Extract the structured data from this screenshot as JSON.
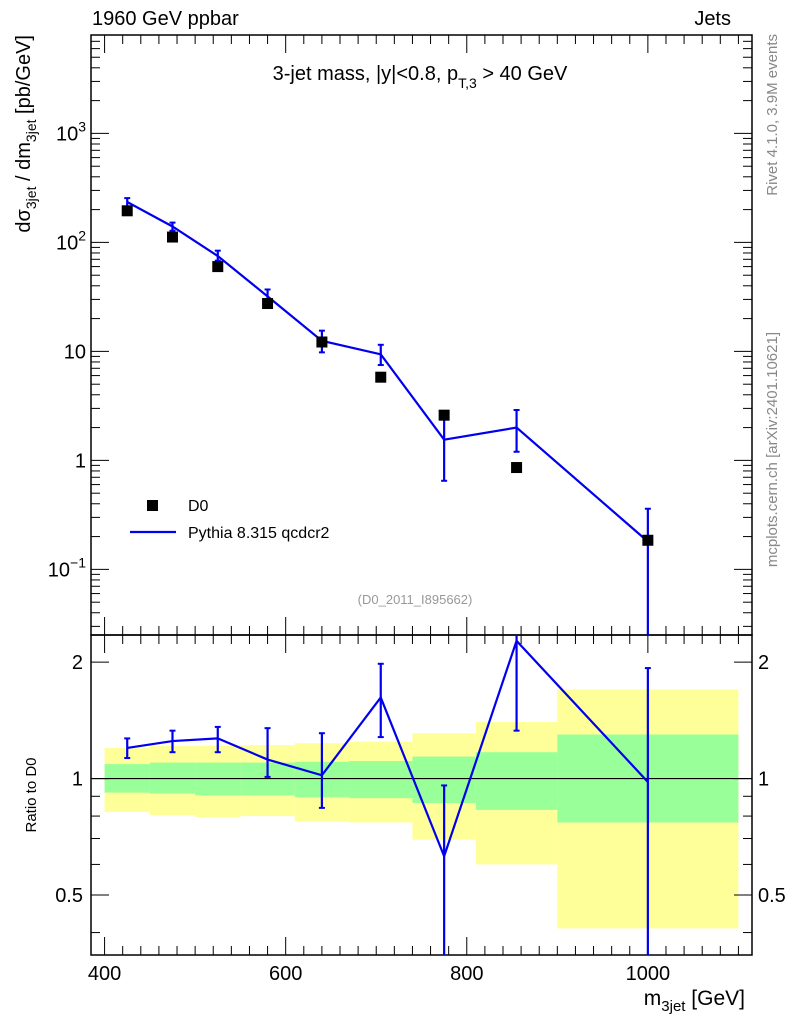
{
  "header": {
    "left": "1960 GeV ppbar",
    "right": "Jets"
  },
  "side_labels": {
    "rivet": "Rivet 4.1.0,  3.9M events",
    "mcplots": "mcplots.cern.ch [arXiv:2401.10621]"
  },
  "colors": {
    "mc": "#0000ee",
    "data": "#000000",
    "band_stat": "#99ff99",
    "band_total": "#ffff99"
  },
  "chart_data": [
    {
      "type": "scatter",
      "panel": "main",
      "title": "3-jet mass, |y|<0.8, p_{T,3} > 40 GeV",
      "title_parts": {
        "main": "3-jet mass, |y|<0.8, p",
        "sub": "T,3",
        "tail": " > 40 GeV"
      },
      "ylabel_parts": {
        "d": "d",
        "sigma": "σ",
        "sub1": "3jet",
        "mid": " / dm",
        "sub2": "3jet",
        "unit": " [pb/GeV]"
      },
      "yscale": "log",
      "ylim": [
        0.025,
        8000
      ],
      "xlim": [
        385,
        1115
      ],
      "yticks": [
        {
          "v": 1000,
          "b": "10",
          "e": "3"
        },
        {
          "v": 100,
          "b": "10",
          "e": "2"
        },
        {
          "v": 10,
          "b": "10",
          "e": ""
        },
        {
          "v": 1,
          "b": "1",
          "e": ""
        },
        {
          "v": 0.1,
          "b": "10",
          "e": "−1"
        }
      ],
      "watermark": "(D0_2011_I895662)",
      "legend": [
        {
          "label": "D0",
          "marker": "square"
        },
        {
          "label": "Pythia 8.315 qcdcr2",
          "marker": "line"
        }
      ],
      "series": [
        {
          "name": "D0",
          "x": [
            425,
            475,
            525,
            580,
            640,
            705,
            775,
            855,
            1000
          ],
          "y": [
            195,
            112,
            60,
            27.5,
            12.2,
            5.8,
            2.6,
            0.86,
            0.185
          ]
        },
        {
          "name": "Pythia 8.315 qcdcr2",
          "x": [
            425,
            475,
            525,
            580,
            640,
            705,
            775,
            855,
            1000
          ],
          "y": [
            235,
            140,
            75,
            32,
            12.5,
            9.4,
            1.55,
            2.0,
            0.18
          ],
          "err_lo": [
            205,
            128,
            68,
            28,
            9.8,
            7.5,
            0.65,
            1.2,
            0.02
          ],
          "err_hi": [
            255,
            152,
            84,
            37,
            15.5,
            11.5,
            2.5,
            2.9,
            0.36
          ]
        }
      ]
    },
    {
      "type": "line",
      "panel": "ratio",
      "ylabel": "Ratio to D0",
      "xlabel_parts": {
        "m": "m",
        "sub": "3jet",
        "unit": " [GeV]"
      },
      "yscale": "log",
      "ylim": [
        0.35,
        2.35
      ],
      "xlim": [
        385,
        1115
      ],
      "xticks": [
        400,
        600,
        800,
        1000
      ],
      "yticks": [
        0.5,
        1,
        2
      ],
      "reference": 1,
      "bins": [
        {
          "lo": 400,
          "hi": 450,
          "stat": [
            0.92,
            1.09
          ],
          "tot": [
            0.82,
            1.2
          ]
        },
        {
          "lo": 450,
          "hi": 500,
          "stat": [
            0.915,
            1.1
          ],
          "tot": [
            0.805,
            1.215
          ]
        },
        {
          "lo": 500,
          "hi": 550,
          "stat": [
            0.905,
            1.1
          ],
          "tot": [
            0.795,
            1.215
          ]
        },
        {
          "lo": 550,
          "hi": 610,
          "stat": [
            0.905,
            1.1
          ],
          "tot": [
            0.8,
            1.22
          ]
        },
        {
          "lo": 610,
          "hi": 670,
          "stat": [
            0.895,
            1.105
          ],
          "tot": [
            0.775,
            1.235
          ]
        },
        {
          "lo": 670,
          "hi": 740,
          "stat": [
            0.89,
            1.11
          ],
          "tot": [
            0.77,
            1.245
          ]
        },
        {
          "lo": 740,
          "hi": 810,
          "stat": [
            0.865,
            1.14
          ],
          "tot": [
            0.695,
            1.31
          ]
        },
        {
          "lo": 810,
          "hi": 900,
          "stat": [
            0.83,
            1.17
          ],
          "tot": [
            0.6,
            1.4
          ]
        },
        {
          "lo": 900,
          "hi": 1100,
          "stat": [
            0.77,
            1.3
          ],
          "tot": [
            0.41,
            1.7
          ]
        }
      ],
      "series": [
        {
          "name": "Pythia 8.315 qcdcr2",
          "x": [
            425,
            475,
            525,
            580,
            640,
            705,
            775,
            855,
            1000
          ],
          "y": [
            1.2,
            1.25,
            1.27,
            1.12,
            1.02,
            1.62,
            0.63,
            2.27,
            0.98
          ],
          "err_lo": [
            1.13,
            1.17,
            1.17,
            1.01,
            0.84,
            1.28,
            0.3,
            1.33,
            0.3
          ],
          "err_hi": [
            1.27,
            1.33,
            1.36,
            1.35,
            1.31,
            1.98,
            0.96,
            2.37,
            1.93
          ]
        }
      ]
    }
  ]
}
